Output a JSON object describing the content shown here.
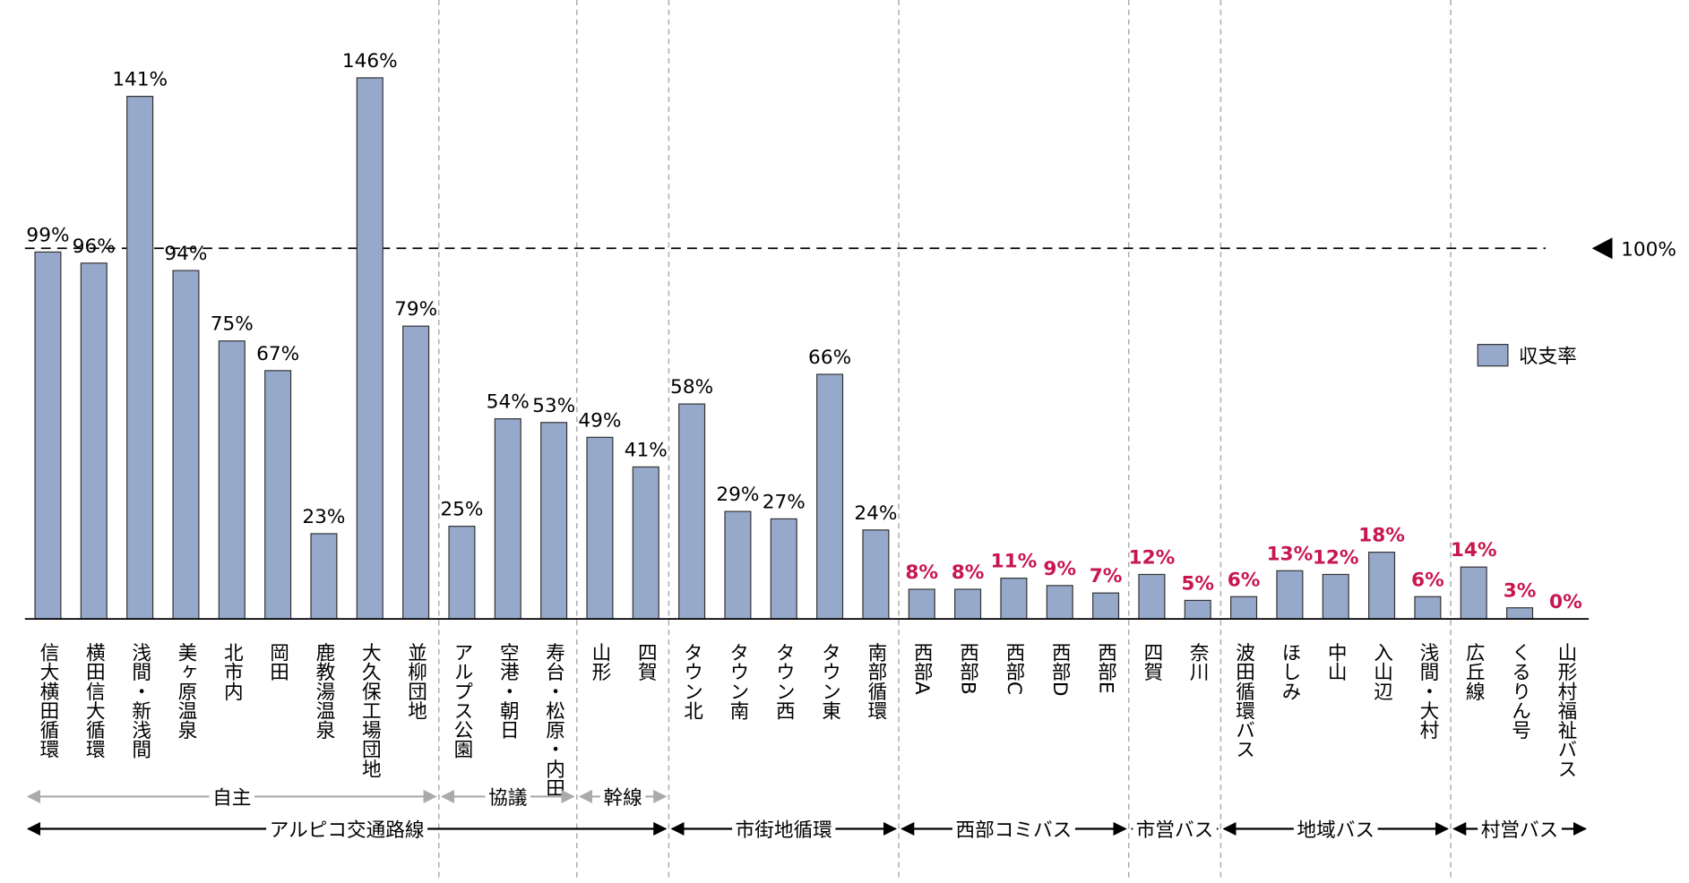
{
  "chart_data": {
    "type": "bar",
    "categories": [
      "信大横田循環",
      "横田信大循環",
      "浅間・新浅間",
      "美ヶ原温泉",
      "北市内",
      "岡田",
      "鹿教湯温泉",
      "大久保工場団地",
      "並柳団地",
      "アルプス公園",
      "空港・朝日",
      "寿台・松原・内田",
      "山形",
      "四賀",
      "タウン北",
      "タウン南",
      "タウン西",
      "タウン東",
      "南部循環",
      "西部A",
      "西部B",
      "西部C",
      "西部D",
      "西部E",
      "四賀",
      "奈川",
      "波田循環バス",
      "ほしみ",
      "中山",
      "入山辺",
      "浅間・大村",
      "広丘線",
      "くるりん号",
      "山形村福祉バス"
    ],
    "series": [
      {
        "name": "収支率",
        "color": "#97a9cb",
        "values": [
          99,
          96,
          141,
          94,
          75,
          67,
          23,
          146,
          79,
          25,
          54,
          53,
          49,
          41,
          58,
          29,
          27,
          66,
          24,
          8,
          8,
          11,
          9,
          7,
          12,
          5,
          6,
          13,
          12,
          18,
          6,
          14,
          3,
          0
        ],
        "value_labels": [
          "99%",
          "96%",
          "141%",
          "94%",
          "75%",
          "67%",
          "23%",
          "146%",
          "79%",
          "25%",
          "54%",
          "53%",
          "49%",
          "41%",
          "58%",
          "29%",
          "27%",
          "66%",
          "24%",
          "8%",
          "8%",
          "11%",
          "9%",
          "7%",
          "12%",
          "5%",
          "6%",
          "13%",
          "12%",
          "18%",
          "6%",
          "14%",
          "3%",
          "0%"
        ],
        "value_label_colors": [
          "#000",
          "#000",
          "#000",
          "#000",
          "#000",
          "#000",
          "#000",
          "#000",
          "#000",
          "#000",
          "#000",
          "#000",
          "#000",
          "#000",
          "#000",
          "#000",
          "#000",
          "#000",
          "#000",
          "#c8174f",
          "#c8174f",
          "#c8174f",
          "#c8174f",
          "#c8174f",
          "#c8174f",
          "#c8174f",
          "#c8174f",
          "#c8174f",
          "#c8174f",
          "#c8174f",
          "#c8174f",
          "#c8174f",
          "#c8174f",
          "#c8174f"
        ]
      }
    ],
    "ylim": [
      0,
      167
    ],
    "reference_line": {
      "value": 100,
      "label": "100%"
    },
    "legend": "right",
    "groups": [
      {
        "label": "自主",
        "start": 0,
        "end": 8,
        "level": 1
      },
      {
        "label": "協議",
        "start": 9,
        "end": 11,
        "level": 1
      },
      {
        "label": "幹線",
        "start": 12,
        "end": 13,
        "level": 1
      },
      {
        "label": "アルピコ交通路線",
        "start": 0,
        "end": 13,
        "level": 2
      },
      {
        "label": "市街地循環",
        "start": 14,
        "end": 18,
        "level": 2
      },
      {
        "label": "西部コミバス",
        "start": 19,
        "end": 23,
        "level": 2
      },
      {
        "label": "市営バス",
        "start": 24,
        "end": 25,
        "level": 2
      },
      {
        "label": "地域バス",
        "start": 26,
        "end": 30,
        "level": 2
      },
      {
        "label": "村営バス",
        "start": 31,
        "end": 33,
        "level": 2
      }
    ]
  }
}
